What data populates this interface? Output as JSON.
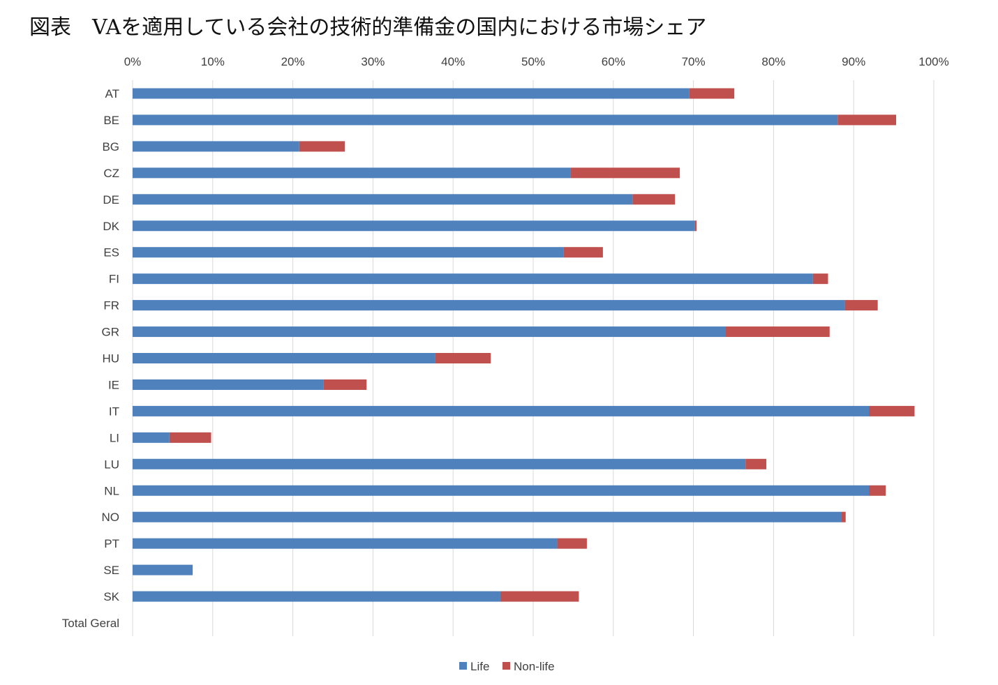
{
  "title": "図表　VAを適用している会社の技術的準備金の国内における市場シェア",
  "chart_data": {
    "type": "bar",
    "orientation": "horizontal",
    "stacked": true,
    "x_axis_position": "top",
    "xlim": [
      0,
      100
    ],
    "x_ticks": [
      0,
      10,
      20,
      30,
      40,
      50,
      60,
      70,
      80,
      90,
      100
    ],
    "x_tick_labels": [
      "0%",
      "10%",
      "20%",
      "30%",
      "40%",
      "50%",
      "60%",
      "70%",
      "80%",
      "90%",
      "100%"
    ],
    "grid": true,
    "legend_position": "bottom",
    "categories": [
      "AT",
      "BE",
      "BG",
      "CZ",
      "DE",
      "DK",
      "ES",
      "FI",
      "FR",
      "GR",
      "HU",
      "IE",
      "IT",
      "LI",
      "LU",
      "NL",
      "NO",
      "PT",
      "SE",
      "SK",
      "Total Geral"
    ],
    "series": [
      {
        "name": "Life",
        "color": "#4F81BD",
        "values": [
          69.5,
          88.0,
          20.8,
          54.7,
          62.4,
          70.2,
          53.8,
          84.9,
          88.9,
          74.0,
          37.8,
          23.8,
          91.9,
          4.6,
          76.5,
          91.9,
          88.5,
          53.0,
          7.5,
          45.9,
          0
        ]
      },
      {
        "name": "Non-life",
        "color": "#C0504D",
        "values": [
          5.6,
          7.3,
          5.7,
          13.6,
          5.3,
          0.2,
          4.9,
          1.9,
          4.1,
          13.0,
          6.9,
          5.4,
          5.7,
          5.2,
          2.6,
          2.1,
          0.5,
          3.7,
          0,
          9.8,
          0
        ]
      }
    ]
  }
}
